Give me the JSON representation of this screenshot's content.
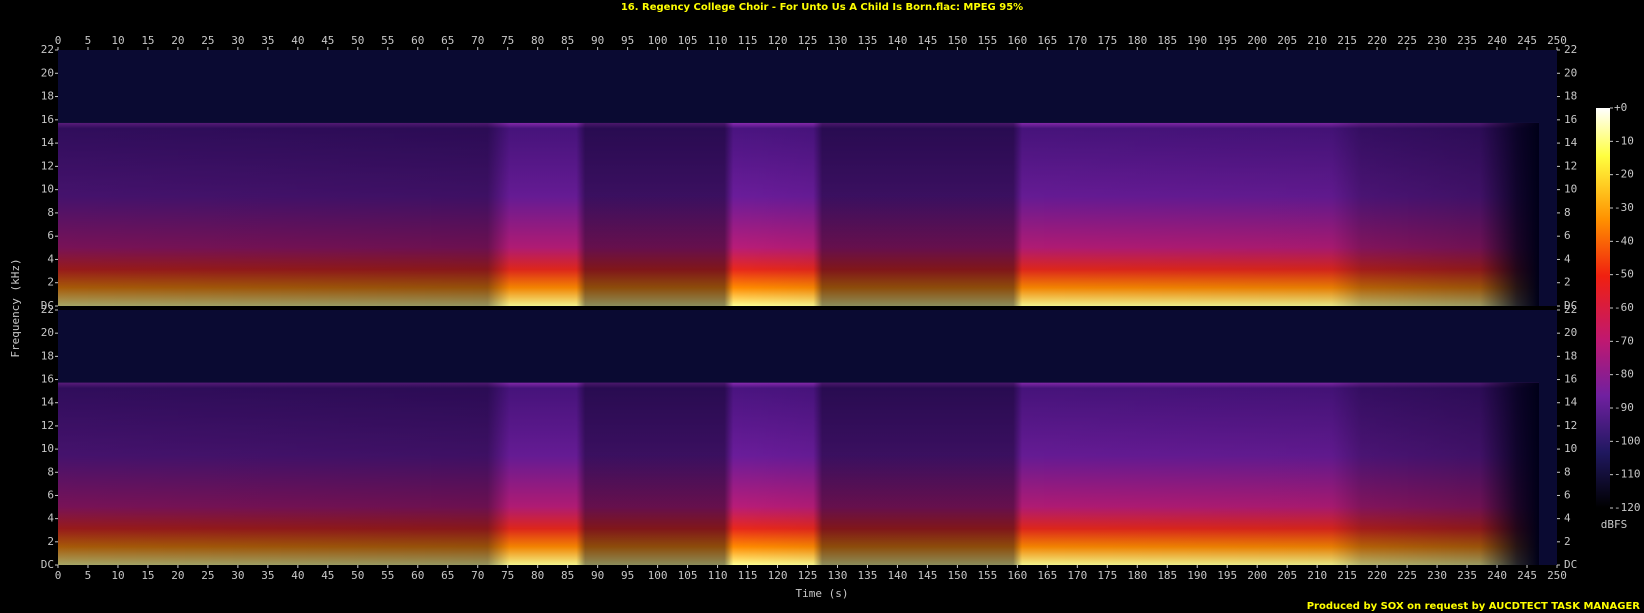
{
  "chart_data": {
    "type": "spectrogram",
    "title": "16. Regency College Choir - For Unto Us A Child Is Born.flac: MPEG 95%",
    "xlabel": "Time (s)",
    "ylabel": "Frequency (kHz)",
    "xlim": [
      0,
      250
    ],
    "xticks": [
      0,
      5,
      10,
      15,
      20,
      25,
      30,
      35,
      40,
      45,
      50,
      55,
      60,
      65,
      70,
      75,
      80,
      85,
      90,
      95,
      100,
      105,
      110,
      115,
      120,
      125,
      130,
      135,
      140,
      145,
      150,
      155,
      160,
      165,
      170,
      175,
      180,
      185,
      190,
      195,
      200,
      205,
      210,
      215,
      220,
      225,
      230,
      235,
      240,
      245,
      250
    ],
    "ylim": [
      0,
      22
    ],
    "yticks": [
      {
        "value": 0,
        "label": "DC"
      },
      2,
      4,
      6,
      8,
      10,
      12,
      14,
      16,
      18,
      20,
      22
    ],
    "colorbar": {
      "label": "dBFS",
      "lim": [
        -120,
        0
      ],
      "ticks": [
        {
          "value": 0,
          "label": "+0"
        },
        -10,
        -20,
        -30,
        -40,
        -50,
        -60,
        -70,
        -80,
        -90,
        -100,
        -110,
        -120
      ]
    },
    "footer": "Produced by SOX on request by AUCDTECT TASK MANAGER"
  }
}
